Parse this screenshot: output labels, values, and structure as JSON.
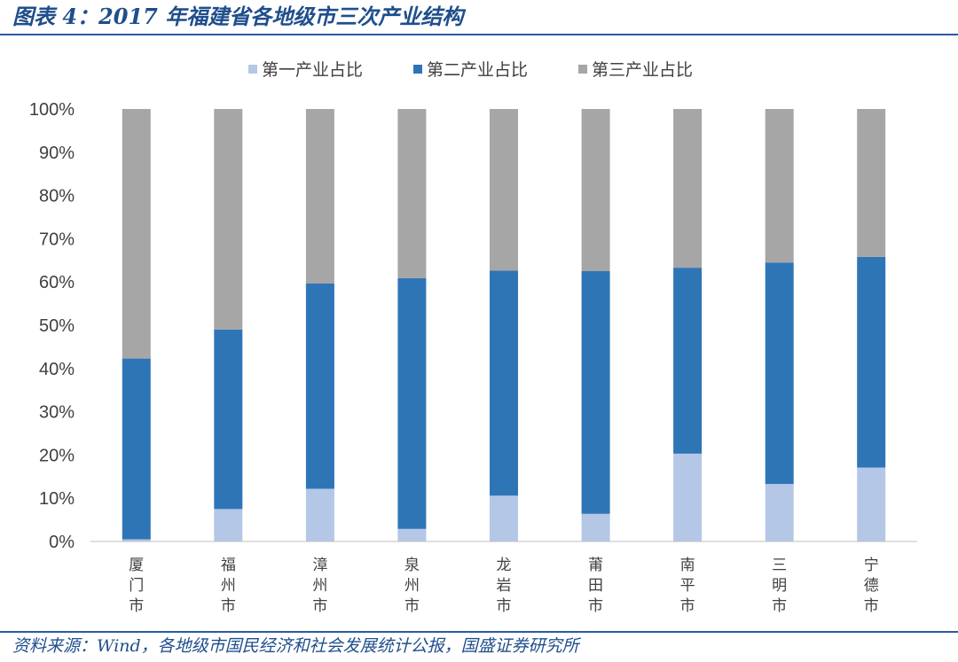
{
  "header": {
    "title": "图表 4：2017 年福建省各地级市三次产业结构"
  },
  "footer": {
    "source": "资料来源：Wind，各地级市国民经济和社会发展统计公报，国盛证券研究所"
  },
  "colors": {
    "primary": "#b4c7e7",
    "secondary": "#2e75b6",
    "tertiary": "#a6a6a6",
    "axis": "#bfbfbf",
    "text": "#404040",
    "title": "#1f4e8c"
  },
  "chart_data": {
    "type": "bar",
    "stacked": true,
    "categories": [
      "厦门市",
      "福州市",
      "漳州市",
      "泉州市",
      "龙岩市",
      "莆田市",
      "南平市",
      "三明市",
      "宁德市"
    ],
    "series": [
      {
        "name": "第一产业占比",
        "values": [
          0.5,
          7.5,
          12.2,
          2.9,
          10.6,
          6.4,
          20.3,
          13.3,
          17.1
        ]
      },
      {
        "name": "第二产业占比",
        "values": [
          41.8,
          41.5,
          47.5,
          58.0,
          52.0,
          56.1,
          43.0,
          51.2,
          48.7
        ]
      },
      {
        "name": "第三产业占比",
        "values": [
          57.7,
          51.0,
          40.3,
          39.1,
          37.4,
          37.5,
          36.7,
          35.5,
          34.2
        ]
      }
    ],
    "yticks": [
      "0%",
      "10%",
      "20%",
      "30%",
      "40%",
      "50%",
      "60%",
      "70%",
      "80%",
      "90%",
      "100%"
    ],
    "ylim": [
      0,
      100
    ],
    "legend_position": "top",
    "grid": false
  }
}
